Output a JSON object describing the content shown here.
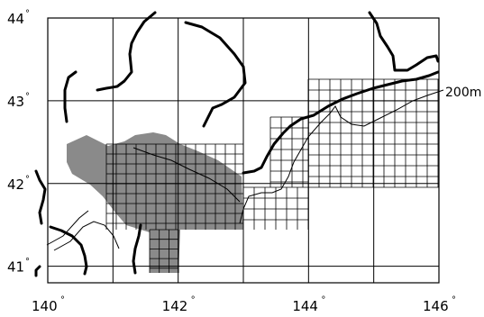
{
  "map": {
    "type": "bathymetric-survey-grid-map",
    "lon_range": [
      140,
      146
    ],
    "lat_range": [
      40.8,
      44
    ],
    "lon_ticks": [
      {
        "value": 140,
        "label": "140",
        "deg": "°"
      },
      {
        "value": 142,
        "label": "142",
        "deg": "°"
      },
      {
        "value": 144,
        "label": "144",
        "deg": "°"
      },
      {
        "value": 146,
        "label": "146",
        "deg": "°"
      }
    ],
    "lat_ticks": [
      {
        "value": 44,
        "label": "44",
        "deg": "°"
      },
      {
        "value": 43,
        "label": "43",
        "deg": "°"
      },
      {
        "value": 42,
        "label": "42",
        "deg": "°"
      },
      {
        "value": 41,
        "label": "41",
        "deg": "°"
      }
    ],
    "major_grid_step_degrees": 1,
    "contour_label": "200m",
    "colors": {
      "land_outline": "#000000",
      "shaded_region": "#8a8a8a",
      "grid": "#000000",
      "background": "#ffffff"
    }
  }
}
